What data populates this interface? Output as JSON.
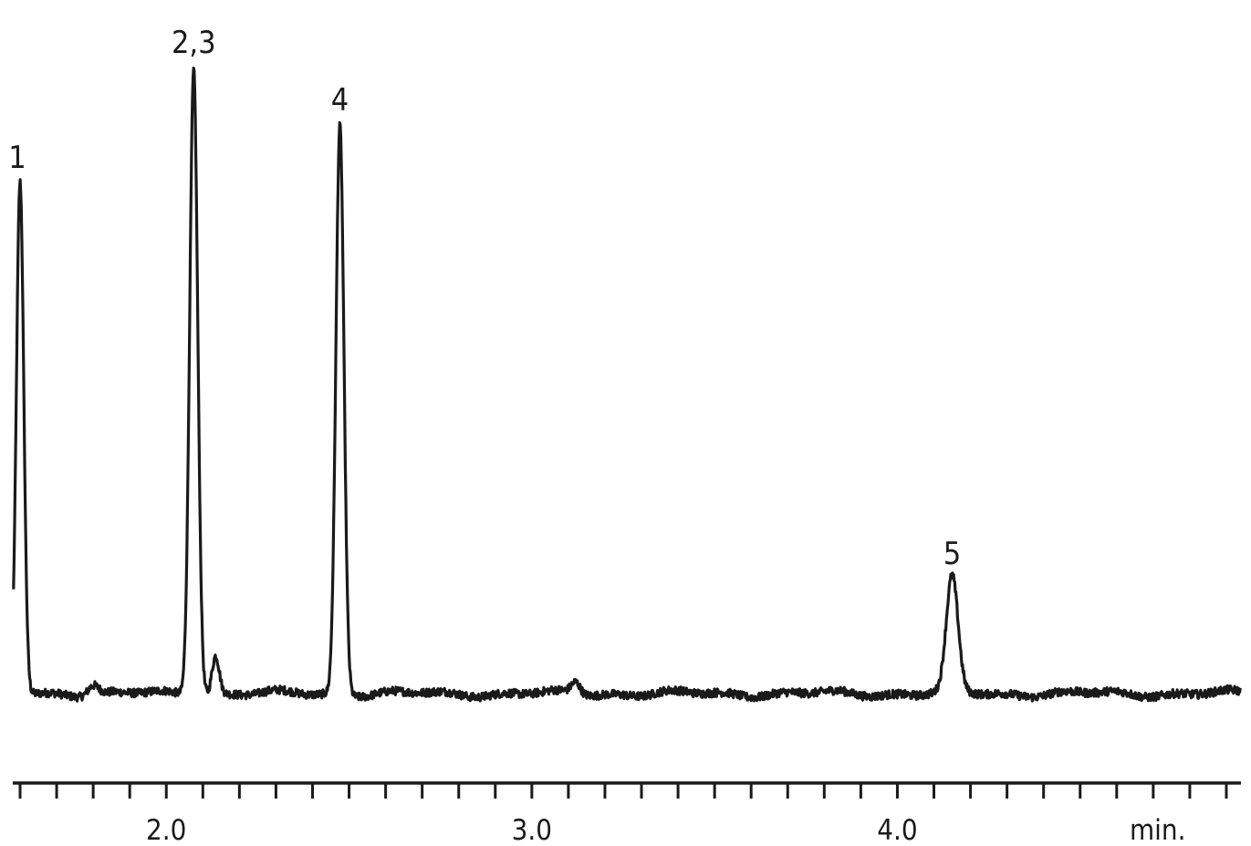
{
  "chart_data": {
    "type": "line",
    "title": "",
    "xlabel": "min.",
    "ylabel": "",
    "xlim": [
      1.58,
      4.94
    ],
    "ylim": [
      0,
      100
    ],
    "x_ticks": [
      {
        "value": 2.0,
        "label": "2.0"
      },
      {
        "value": 3.0,
        "label": "3.0"
      },
      {
        "value": 4.0,
        "label": "4.0"
      }
    ],
    "minor_tick_step": 0.1,
    "baseline": 2.5,
    "series": [
      {
        "color": "#1a1a1a",
        "peaks": [
          {
            "label": "1",
            "x": 1.6,
            "height": 80.0,
            "width": 0.01
          },
          {
            "label": "2,3",
            "x": 2.075,
            "height": 98.0,
            "width": 0.011
          },
          {
            "label": "",
            "x": 2.135,
            "height": 6.0,
            "width": 0.01
          },
          {
            "label": "4",
            "x": 2.475,
            "height": 89.0,
            "width": 0.011
          },
          {
            "label": "",
            "x": 1.8,
            "height": 1.6,
            "width": 0.015
          },
          {
            "label": "",
            "x": 3.12,
            "height": 1.8,
            "width": 0.012
          },
          {
            "label": "5",
            "x": 4.15,
            "height": 18.0,
            "width": 0.016
          }
        ]
      }
    ],
    "grid": false,
    "legend": false
  }
}
